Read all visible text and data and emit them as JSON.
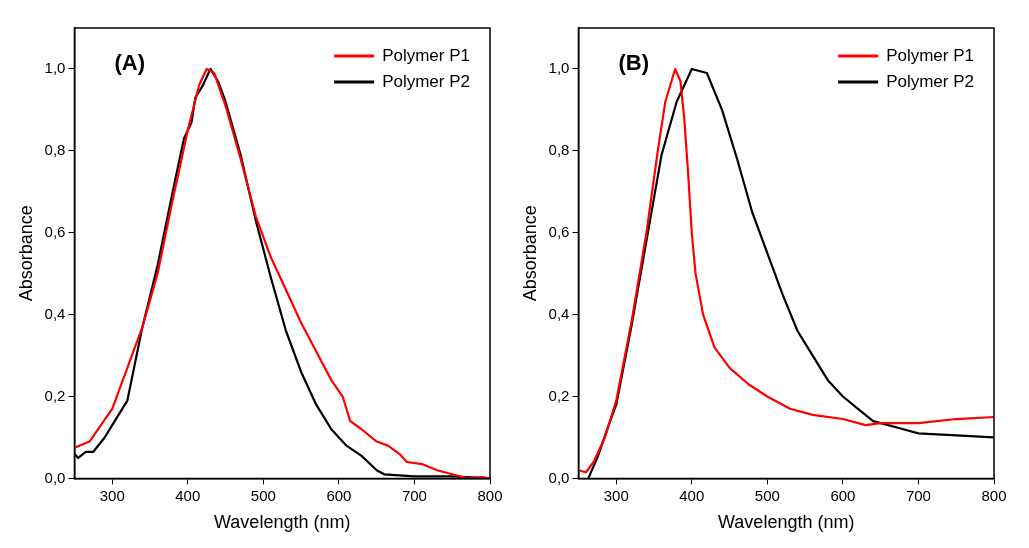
{
  "chart_data": [
    {
      "type": "line",
      "annotations": [
        "(A)"
      ],
      "xlabel": "Wavelength (nm)",
      "ylabel": "Absorbance",
      "xlim": [
        250,
        800
      ],
      "xticks": [
        300,
        400,
        500,
        600,
        700,
        800
      ],
      "ylim": [
        0,
        1.1
      ],
      "yticks": [
        {
          "value": 0,
          "label": "0,0"
        },
        {
          "value": 0.2,
          "label": "0,2"
        },
        {
          "value": 0.4,
          "label": "0,4"
        },
        {
          "value": 0.6,
          "label": "0,6"
        },
        {
          "value": 0.8,
          "label": "0,8"
        },
        {
          "value": 1,
          "label": "1,0"
        }
      ],
      "grid": false,
      "legend": "top right",
      "marker": "none",
      "line_style": "solid",
      "series": [
        {
          "name": "Polymer P1",
          "color": "#ff0000",
          "x": [
            250,
            270,
            285,
            300,
            320,
            340,
            360,
            380,
            400,
            415,
            425,
            435,
            450,
            470,
            490,
            510,
            530,
            550,
            570,
            590,
            605,
            615,
            630,
            650,
            665,
            680,
            690,
            710,
            730,
            750,
            770,
            790,
            800
          ],
          "values": [
            0.075,
            0.09,
            0.13,
            0.17,
            0.27,
            0.37,
            0.5,
            0.68,
            0.85,
            0.96,
            1.0,
            0.99,
            0.91,
            0.78,
            0.64,
            0.54,
            0.46,
            0.38,
            0.31,
            0.24,
            0.2,
            0.14,
            0.12,
            0.09,
            0.08,
            0.06,
            0.04,
            0.035,
            0.02,
            0.01,
            0.0,
            0.003,
            0.0
          ]
        },
        {
          "name": "Polymer P2",
          "color": "#000000",
          "x": [
            250,
            255,
            265,
            275,
            290,
            300,
            320,
            330,
            340,
            360,
            380,
            395,
            405,
            410,
            420,
            430,
            440,
            450,
            470,
            490,
            510,
            530,
            550,
            570,
            590,
            610,
            630,
            650,
            660,
            700,
            750,
            800
          ],
          "values": [
            0.06,
            0.05,
            0.065,
            0.065,
            0.1,
            0.13,
            0.19,
            0.28,
            0.37,
            0.52,
            0.7,
            0.83,
            0.87,
            0.93,
            0.96,
            1.0,
            0.97,
            0.92,
            0.79,
            0.63,
            0.49,
            0.36,
            0.26,
            0.18,
            0.12,
            0.08,
            0.055,
            0.02,
            0.01,
            0.005,
            0.005,
            0.0
          ]
        }
      ]
    },
    {
      "type": "line",
      "annotations": [
        "(B)"
      ],
      "xlabel": "Wavelength (nm)",
      "ylabel": "Absorbance",
      "xlim": [
        250,
        800
      ],
      "xticks": [
        300,
        400,
        500,
        600,
        700,
        800
      ],
      "ylim": [
        0,
        1.1
      ],
      "yticks": [
        {
          "value": 0,
          "label": "0,0"
        },
        {
          "value": 0.2,
          "label": "0,2"
        },
        {
          "value": 0.4,
          "label": "0,4"
        },
        {
          "value": 0.6,
          "label": "0,6"
        },
        {
          "value": 0.8,
          "label": "0,8"
        },
        {
          "value": 1,
          "label": "1,0"
        }
      ],
      "grid": false,
      "legend": "top right",
      "marker": "none",
      "line_style": "solid",
      "series": [
        {
          "name": "Polymer P1",
          "color": "#ff0000",
          "x": [
            250,
            260,
            270,
            285,
            300,
            320,
            340,
            355,
            365,
            378,
            385,
            390,
            395,
            400,
            405,
            415,
            430,
            450,
            475,
            500,
            530,
            560,
            600,
            630,
            650,
            700,
            750,
            800
          ],
          "values": [
            0.02,
            0.015,
            0.04,
            0.1,
            0.19,
            0.38,
            0.6,
            0.8,
            0.92,
            1.0,
            0.97,
            0.88,
            0.75,
            0.6,
            0.5,
            0.4,
            0.32,
            0.27,
            0.23,
            0.2,
            0.17,
            0.155,
            0.145,
            0.13,
            0.135,
            0.135,
            0.145,
            0.15
          ]
        },
        {
          "name": "Polymer P2",
          "color": "#000000",
          "x": [
            263,
            275,
            290,
            300,
            320,
            340,
            360,
            380,
            400,
            420,
            440,
            460,
            480,
            500,
            520,
            540,
            560,
            580,
            600,
            620,
            640,
            660,
            680,
            700,
            750,
            800
          ],
          "values": [
            0,
            0.05,
            0.13,
            0.18,
            0.37,
            0.58,
            0.79,
            0.92,
            1.0,
            0.99,
            0.9,
            0.78,
            0.65,
            0.55,
            0.45,
            0.36,
            0.3,
            0.24,
            0.2,
            0.17,
            0.14,
            0.13,
            0.12,
            0.11,
            0.105,
            0.1
          ]
        }
      ]
    }
  ]
}
